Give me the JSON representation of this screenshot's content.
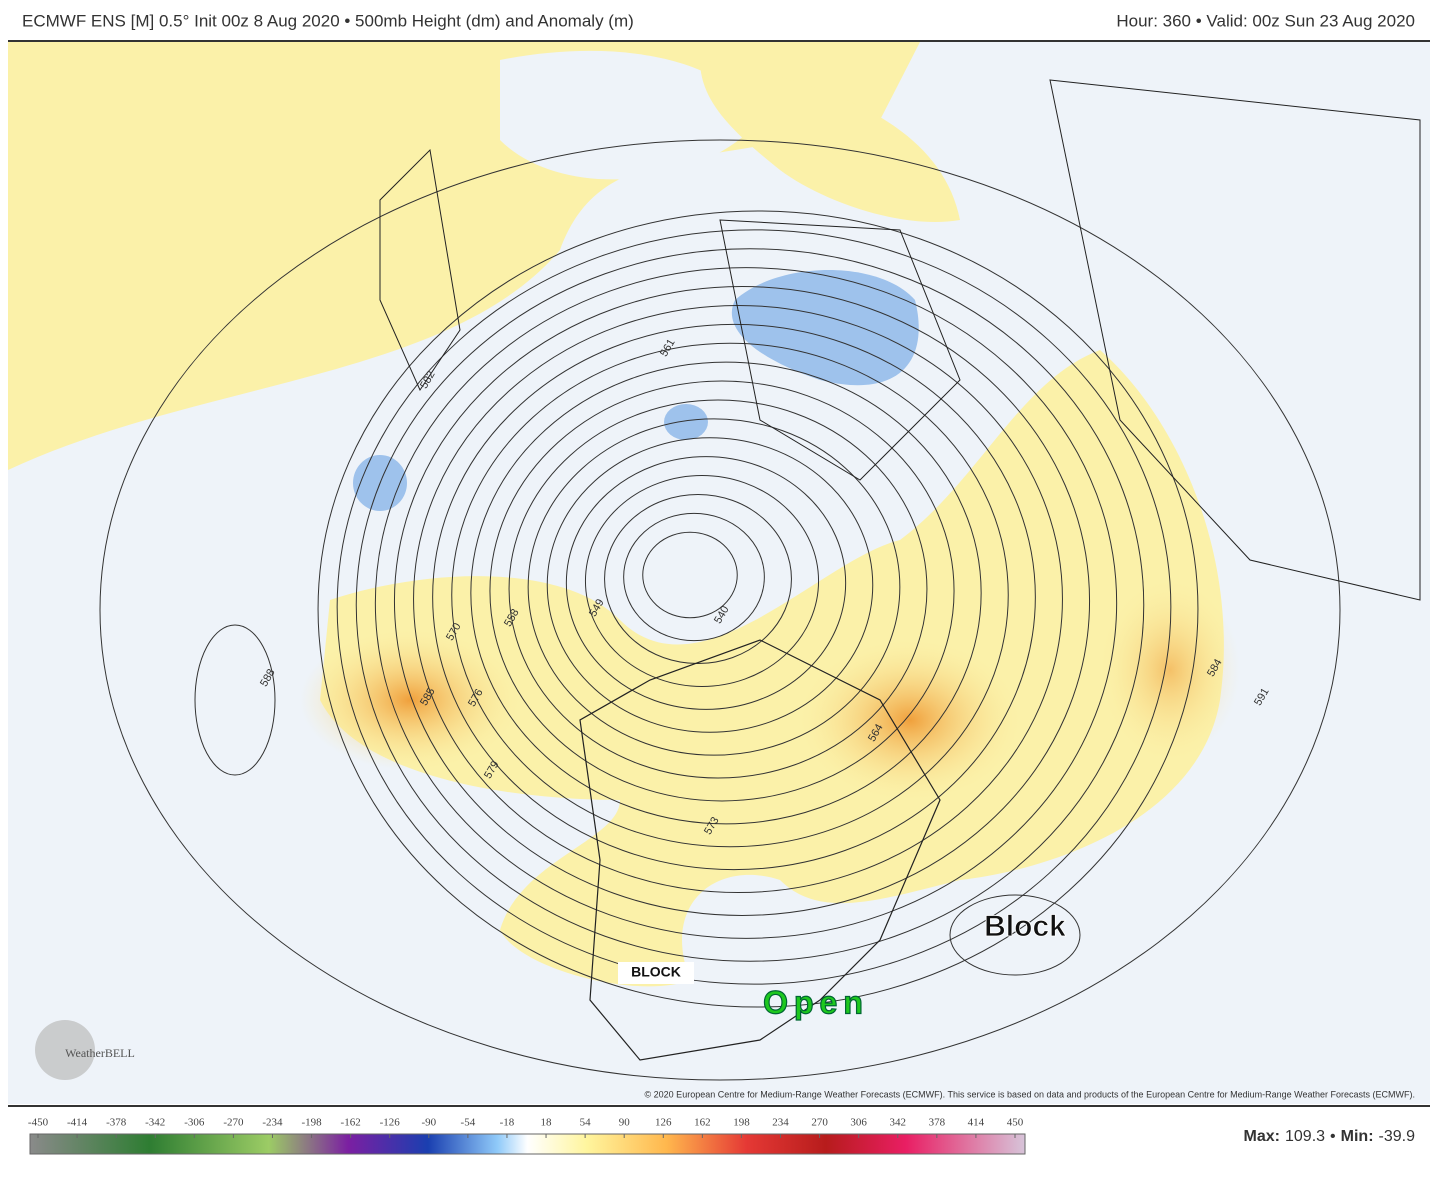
{
  "header": {
    "left": "ECMWF ENS [M] 0.5° Init 00z 8 Aug 2020 • 500mb Height (dm) and Anomaly (m)",
    "right": "Hour: 360 • Valid: 00z Sun 23 Aug 2020"
  },
  "annotations": {
    "block_atlantic": "Block",
    "block_west": "BLOCK",
    "open": "Open"
  },
  "contour_labels": [
    561,
    582,
    558,
    549,
    540,
    585,
    576,
    579,
    573,
    588,
    564,
    591,
    584,
    570
  ],
  "logo": "WeatherBELL",
  "copyright": "© 2020 European Centre for Medium-Range Weather Forecasts (ECMWF). This service is based on data and products of the European Centre for Medium-Range Weather Forecasts (ECMWF).",
  "colorbar": {
    "ticks": [
      -450,
      -414,
      -378,
      -342,
      -306,
      -270,
      -234,
      -198,
      -162,
      -126,
      -90,
      -54,
      -18,
      18,
      54,
      90,
      126,
      162,
      198,
      234,
      270,
      306,
      342,
      378,
      414,
      450
    ]
  },
  "stats": {
    "max_label": "Max:",
    "max": 109.3,
    "separator": "•",
    "min_label": "Min:",
    "min": -39.9
  }
}
